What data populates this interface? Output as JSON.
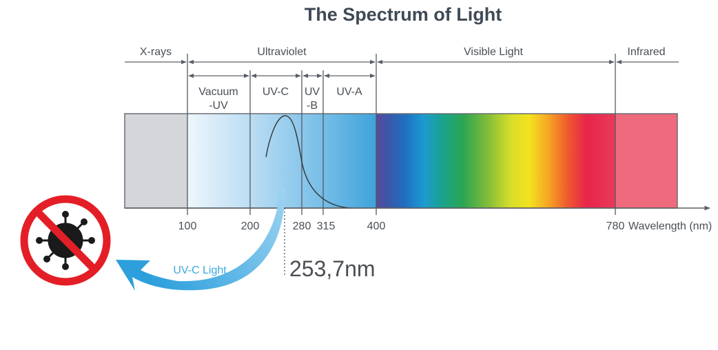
{
  "title": "The Spectrum of Light",
  "regions": {
    "xrays": "X-rays",
    "ultraviolet": "Ultraviolet",
    "visible": "Visible Light",
    "infrared": "Infrared"
  },
  "uv_bands": {
    "vacuum_line1": "Vacuum",
    "vacuum_line2": "-UV",
    "uvc": "UV-C",
    "uvb_line1": "UV",
    "uvb_line2": "-B",
    "uva": "UV-A"
  },
  "ticks": {
    "t100": "100",
    "t200": "200",
    "t280": "280",
    "t315": "315",
    "t400": "400",
    "t780": "780"
  },
  "axis_label": "Wavelength (nm)",
  "peak_label": "253,7nm",
  "arrow_label": "UV-C Light",
  "icons": {
    "virus": "virus-icon",
    "prohibition": "prohibition-icon"
  },
  "colors": {
    "xray_band": "#d4d6d9",
    "infrared_band": "#ef6a7c",
    "prohibition_red": "#e41e26",
    "arrow_blue": "#3aa8dc"
  }
}
